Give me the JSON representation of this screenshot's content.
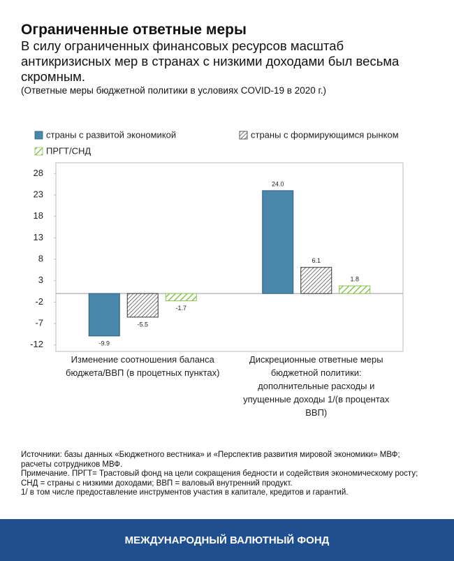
{
  "header": {
    "title": "Ограниченные ответные меры",
    "subtitle": "В силу ограниченных финансовых ресурсов масштаб антикризисных мер в странах с низкими доходами был весьма скромным.",
    "note": "(Ответные меры бюджетной политики в условиях COVID-19 в 2020 г.)"
  },
  "chart_data": {
    "type": "bar",
    "categories": [
      "Изменение соотношения баланса бюджета/ВВП (в процетных пунктах)",
      "Дискреционные ответные меры бюджетной политики: дополнительные расходы и упущенные доходы 1/(в процентах ВВП)"
    ],
    "series": [
      {
        "name": "страны с развитой экономикой",
        "color": "#4a87ab",
        "hatch": false,
        "values": [
          -9.9,
          24.0
        ],
        "value_labels": [
          "-9.9",
          "24.0"
        ]
      },
      {
        "name": "страны с формирующимся рынком",
        "color": "#333333",
        "hatch": true,
        "values": [
          -5.5,
          6.1
        ]
      },
      {
        "name": "ПРГТ/СНД",
        "color": "#8cc152",
        "hatch": true,
        "values": [
          -1.7,
          1.8
        ]
      }
    ],
    "ylim": [
      -13.5,
      30.5
    ],
    "yticks": [
      28,
      23,
      18,
      13,
      8,
      3,
      -2,
      -7,
      -12
    ]
  },
  "sources": [
    "Источники: базы данных «Бюджетного вестника» и  «Перспектив развития мировой экономики» МВФ; расчеты сотрудников МВФ.",
    "Примечание. ПРГТ= Трастовый фонд на цели сокращения бедности и содействия экономическому росту; СНД = страны с низкими доходами;  ВВП = валовый внутренний продукт.",
    "1/ в том числе предоставление инструментов участия в капитале, кредитов и гарантий."
  ],
  "footer": "МЕЖДУНАРОДНЫЙ ВАЛЮТНЫЙ ФОНД"
}
